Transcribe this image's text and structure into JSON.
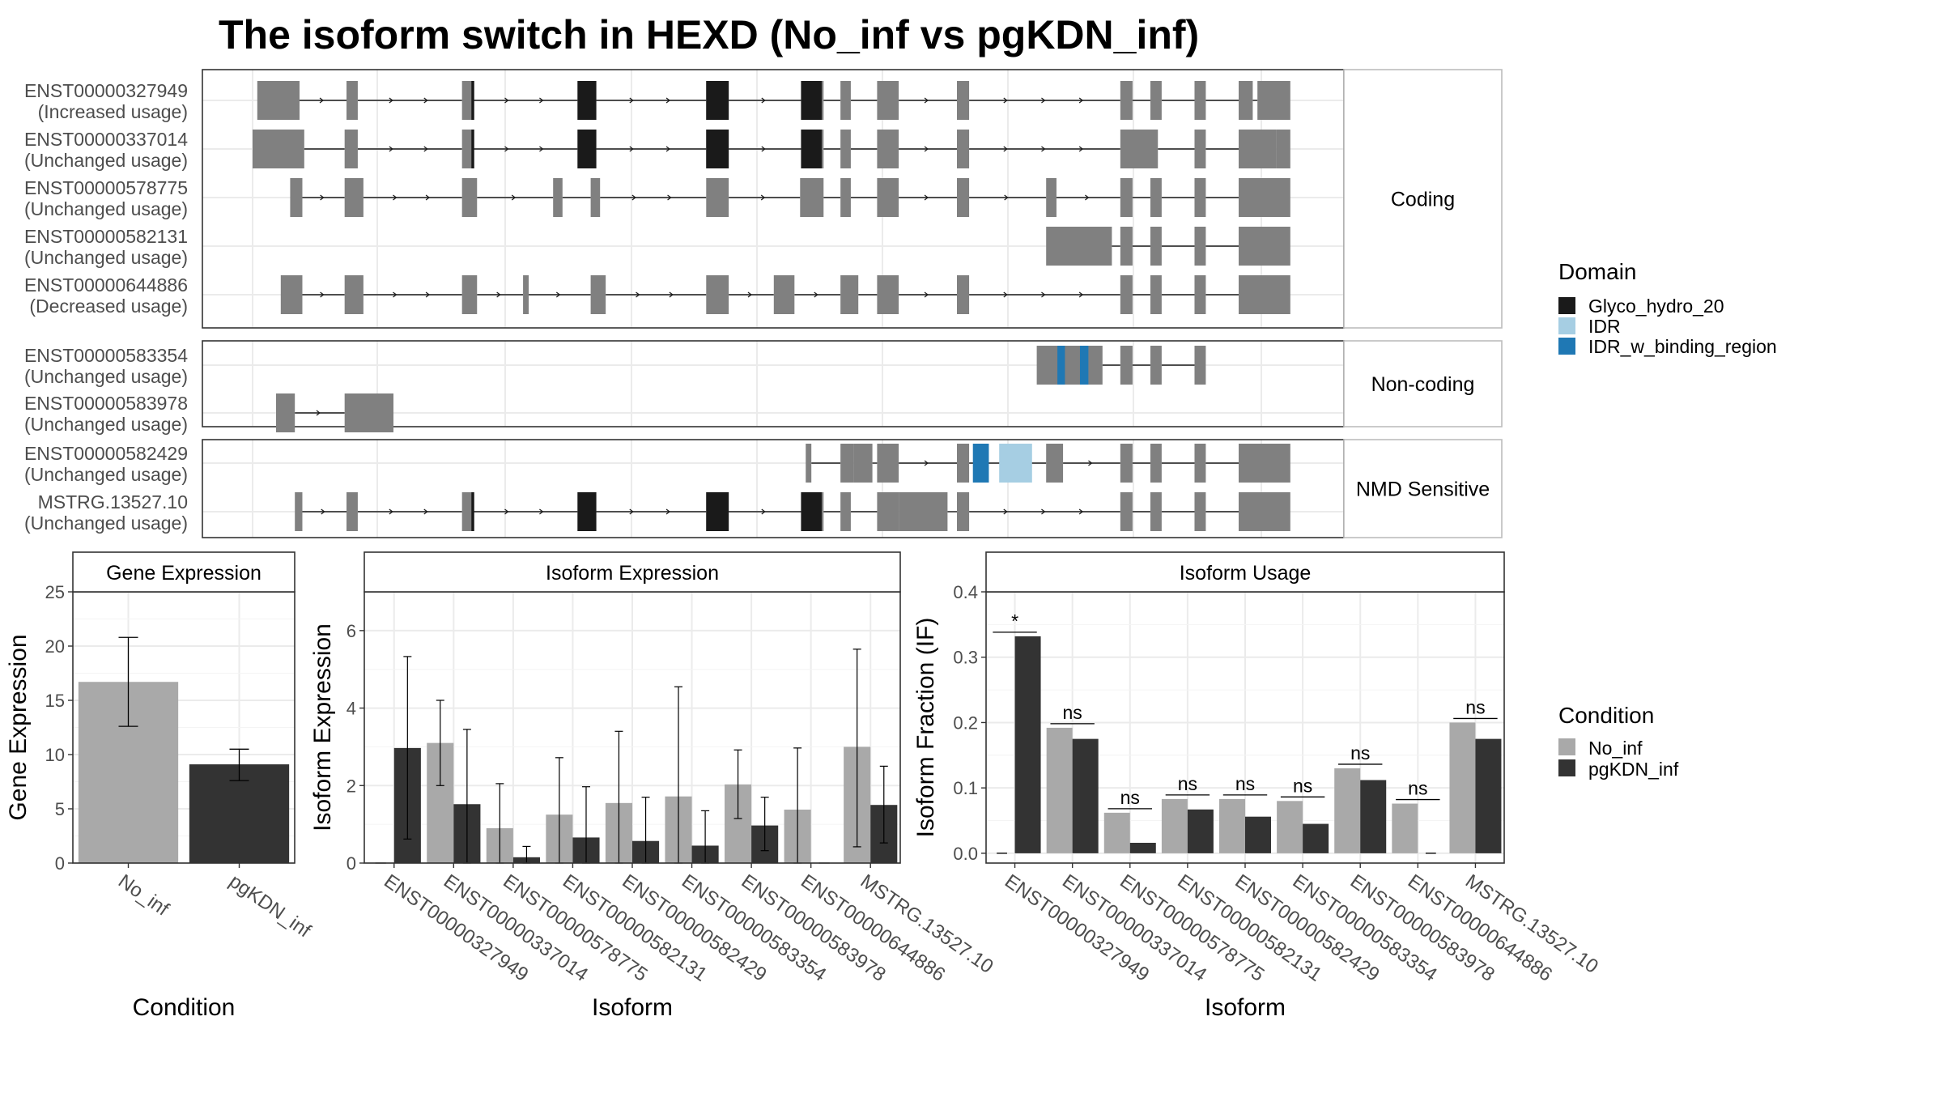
{
  "title": "The isoform switch in HEXD (No_inf vs pgKDN_inf)",
  "colors": {
    "exon": "#808080",
    "domain_Glyco_hydro_20": "#1a1a1a",
    "domain_IDR": "#a6cee3",
    "domain_IDR_w_binding_region": "#1f78b4",
    "No_inf": "#a9a9a9",
    "pgKDN_inf": "#333333",
    "grid": "#ebebeb",
    "panel_border": "#333333",
    "strip_border": "#bdbdbd"
  },
  "domain_legend": {
    "title": "Domain",
    "items": [
      "Glyco_hydro_20",
      "IDR",
      "IDR_w_binding_region"
    ]
  },
  "condition_legend": {
    "title": "Condition",
    "items": [
      "No_inf",
      "pgKDN_inf"
    ]
  },
  "structure": {
    "groups": [
      {
        "strip": "Coding",
        "transcripts": [
          {
            "id": "ENST00000327949",
            "usage": "(Increased usage)",
            "exons": [
              [
                0.5,
                5.0
              ],
              [
                10.0,
                11.2
              ],
              [
                22.3,
                23.5
              ],
              [
                34.6,
                36.6
              ],
              [
                48.3,
                50.7
              ],
              [
                58.4,
                60.8
              ],
              [
                62.6,
                63.7
              ],
              [
                66.5,
                68.8
              ],
              [
                75.0,
                76.3
              ],
              [
                92.4,
                93.7
              ],
              [
                95.6,
                96.8
              ],
              [
                100.3,
                101.5
              ],
              [
                105.0,
                106.5
              ],
              [
                107.0,
                110.5
              ]
            ],
            "domains": [
              [
                23.3,
                23.6,
                "Glyco_hydro_20"
              ],
              [
                34.6,
                36.6,
                "Glyco_hydro_20"
              ],
              [
                48.3,
                50.7,
                "Glyco_hydro_20"
              ],
              [
                58.4,
                60.6,
                "Glyco_hydro_20"
              ]
            ]
          },
          {
            "id": "ENST00000337014",
            "usage": "(Unchanged usage)",
            "exons": [
              [
                0.0,
                5.5
              ],
              [
                9.8,
                11.2
              ],
              [
                22.3,
                23.5
              ],
              [
                34.6,
                36.6
              ],
              [
                48.3,
                50.7
              ],
              [
                58.4,
                60.8
              ],
              [
                62.6,
                63.7
              ],
              [
                66.5,
                68.8
              ],
              [
                75.0,
                76.3
              ],
              [
                92.4,
                96.4
              ],
              [
                100.3,
                101.5
              ],
              [
                105.0,
                109.0
              ],
              [
                109.0,
                110.5
              ]
            ],
            "domains": [
              [
                23.3,
                23.6,
                "Glyco_hydro_20"
              ],
              [
                34.6,
                36.6,
                "Glyco_hydro_20"
              ],
              [
                48.3,
                50.7,
                "Glyco_hydro_20"
              ],
              [
                58.4,
                60.6,
                "Glyco_hydro_20"
              ]
            ]
          },
          {
            "id": "ENST00000578775",
            "usage": "(Unchanged usage)",
            "exons": [
              [
                4.0,
                5.3
              ],
              [
                9.8,
                11.8
              ],
              [
                22.3,
                23.9
              ],
              [
                32.0,
                33.0
              ],
              [
                36.0,
                37.0
              ],
              [
                48.3,
                50.7
              ],
              [
                58.3,
                60.8
              ],
              [
                62.6,
                63.7
              ],
              [
                66.5,
                68.8
              ],
              [
                75.0,
                76.3
              ],
              [
                84.5,
                85.6
              ],
              [
                92.4,
                93.7
              ],
              [
                95.6,
                96.8
              ],
              [
                100.3,
                101.5
              ],
              [
                105.0,
                110.5
              ]
            ],
            "domains": []
          },
          {
            "id": "ENST00000582131",
            "usage": "(Unchanged usage)",
            "exons": [
              [
                84.5,
                91.5
              ],
              [
                92.4,
                93.7
              ],
              [
                95.6,
                96.8
              ],
              [
                100.3,
                101.5
              ],
              [
                105.0,
                110.5
              ]
            ],
            "domains": []
          },
          {
            "id": "ENST00000644886",
            "usage": "(Decreased usage)",
            "exons": [
              [
                3.0,
                5.3
              ],
              [
                9.8,
                11.8
              ],
              [
                22.3,
                23.9
              ],
              [
                28.8,
                29.4
              ],
              [
                36.0,
                37.6
              ],
              [
                48.3,
                50.7
              ],
              [
                55.5,
                57.7
              ],
              [
                62.6,
                64.5
              ],
              [
                66.5,
                68.8
              ],
              [
                75.0,
                76.3
              ],
              [
                92.4,
                93.7
              ],
              [
                95.6,
                96.8
              ],
              [
                100.3,
                101.5
              ],
              [
                105.0,
                110.5
              ]
            ],
            "domains": []
          }
        ]
      },
      {
        "strip": "Non-coding",
        "transcripts": [
          {
            "id": "ENST00000583354",
            "usage": "(Unchanged usage)",
            "exons": [
              [
                83.5,
                89.0
              ],
              [
                89.0,
                90.5
              ],
              [
                92.4,
                93.7
              ],
              [
                95.6,
                96.8
              ],
              [
                100.3,
                101.5
              ]
            ],
            "domains": [
              [
                85.7,
                86.5,
                "IDR_w_binding_region"
              ],
              [
                88.1,
                89.0,
                "IDR_w_binding_region"
              ]
            ]
          },
          {
            "id": "ENST00000583978",
            "usage": "(Unchanged usage)",
            "exons": [
              [
                2.5,
                4.5
              ],
              [
                9.8,
                15.0
              ]
            ],
            "domains": []
          }
        ]
      },
      {
        "strip": "NMD Sensitive",
        "transcripts": [
          {
            "id": "ENST00000582429",
            "usage": "(Unchanged usage)",
            "exons": [
              [
                58.9,
                59.5
              ],
              [
                62.6,
                64.0
              ],
              [
                64.0,
                66.0
              ],
              [
                66.5,
                68.8
              ],
              [
                75.0,
                76.3
              ],
              [
                84.5,
                86.3
              ],
              [
                92.4,
                93.7
              ],
              [
                95.6,
                96.8
              ],
              [
                100.3,
                101.5
              ],
              [
                105.0,
                110.5
              ]
            ],
            "domains": [
              [
                76.7,
                78.4,
                "IDR_w_binding_region"
              ],
              [
                79.5,
                83.0,
                "IDR"
              ]
            ]
          },
          {
            "id": "MSTRG.13527.10",
            "usage": "(Unchanged usage)",
            "exons": [
              [
                4.5,
                5.3
              ],
              [
                10.0,
                11.2
              ],
              [
                22.3,
                23.5
              ],
              [
                34.6,
                36.6
              ],
              [
                48.3,
                50.7
              ],
              [
                58.4,
                60.8
              ],
              [
                62.6,
                63.7
              ],
              [
                66.5,
                68.8
              ],
              [
                68.8,
                74.0
              ],
              [
                75.0,
                76.3
              ],
              [
                92.4,
                93.7
              ],
              [
                95.6,
                96.8
              ],
              [
                100.3,
                101.5
              ],
              [
                105.0,
                110.5
              ]
            ],
            "domains": [
              [
                23.3,
                23.6,
                "Glyco_hydro_20"
              ],
              [
                34.6,
                36.6,
                "Glyco_hydro_20"
              ],
              [
                48.3,
                50.7,
                "Glyco_hydro_20"
              ],
              [
                58.4,
                60.6,
                "Glyco_hydro_20"
              ]
            ]
          }
        ]
      }
    ]
  },
  "chart_data": [
    {
      "type": "bar",
      "title": "Gene Expression",
      "xlabel": "Condition",
      "ylabel": "Gene Expression",
      "ylim": [
        0,
        25
      ],
      "yticks": [
        "0",
        "5",
        "10",
        "15",
        "20",
        "25"
      ],
      "categories": [
        "No_inf",
        "pgKDN_inf"
      ],
      "values": [
        16.7,
        9.1
      ],
      "error": [
        [
          12.6,
          20.8
        ],
        [
          7.6,
          10.5
        ]
      ]
    },
    {
      "type": "bar",
      "title": "Isoform Expression",
      "xlabel": "Isoform",
      "ylabel": "Isoform Expression",
      "ylim": [
        0,
        7
      ],
      "yticks": [
        "0",
        "2",
        "4",
        "6"
      ],
      "categories": [
        "ENST00000327949",
        "ENST00000337014",
        "ENST00000578775",
        "ENST00000582131",
        "ENST00000582429",
        "ENST00000583354",
        "ENST00000583978",
        "ENST00000644886",
        "MSTRG.13527.10"
      ],
      "series": [
        {
          "name": "No_inf",
          "values": [
            0.0,
            3.1,
            0.9,
            1.25,
            1.55,
            1.72,
            2.03,
            1.38,
            3.0
          ],
          "error": [
            [
              0.0,
              0.0
            ],
            [
              2.0,
              4.2
            ],
            [
              0.0,
              2.05
            ],
            [
              0.0,
              2.72
            ],
            [
              0.0,
              3.4
            ],
            [
              0.0,
              4.55
            ],
            [
              1.15,
              2.92
            ],
            [
              0.0,
              2.97
            ],
            [
              0.42,
              5.52
            ]
          ]
        },
        {
          "name": "pgKDN_inf",
          "values": [
            2.97,
            1.52,
            0.15,
            0.66,
            0.57,
            0.45,
            0.97,
            0.0,
            1.5
          ],
          "error": [
            [
              0.62,
              5.33
            ],
            [
              0.0,
              3.45
            ],
            [
              0.0,
              0.43
            ],
            [
              0.0,
              1.97
            ],
            [
              0.0,
              1.7
            ],
            [
              0.0,
              1.35
            ],
            [
              0.32,
              1.7
            ],
            [
              0.0,
              0.0
            ],
            [
              0.52,
              2.5
            ]
          ]
        }
      ]
    },
    {
      "type": "bar",
      "title": "Isoform Usage",
      "xlabel": "Isoform",
      "ylabel": "Isoform Fraction (IF)",
      "ylim": [
        -0.015,
        0.4
      ],
      "yticks": [
        "0.0",
        "0.1",
        "0.2",
        "0.3",
        "0.4"
      ],
      "categories": [
        "ENST00000327949",
        "ENST00000337014",
        "ENST00000578775",
        "ENST00000582131",
        "ENST00000582429",
        "ENST00000583354",
        "ENST00000583978",
        "ENST00000644886",
        "MSTRG.13527.10"
      ],
      "series": [
        {
          "name": "No_inf",
          "values": [
            0.0,
            0.192,
            0.062,
            0.083,
            0.083,
            0.08,
            0.13,
            0.076,
            0.2
          ]
        },
        {
          "name": "pgKDN_inf",
          "values": [
            0.332,
            0.175,
            0.016,
            0.067,
            0.056,
            0.045,
            0.112,
            0.0,
            0.175
          ]
        }
      ],
      "significance": [
        "*",
        "ns",
        "ns",
        "ns",
        "ns",
        "ns",
        "ns",
        "ns",
        "ns"
      ]
    }
  ]
}
